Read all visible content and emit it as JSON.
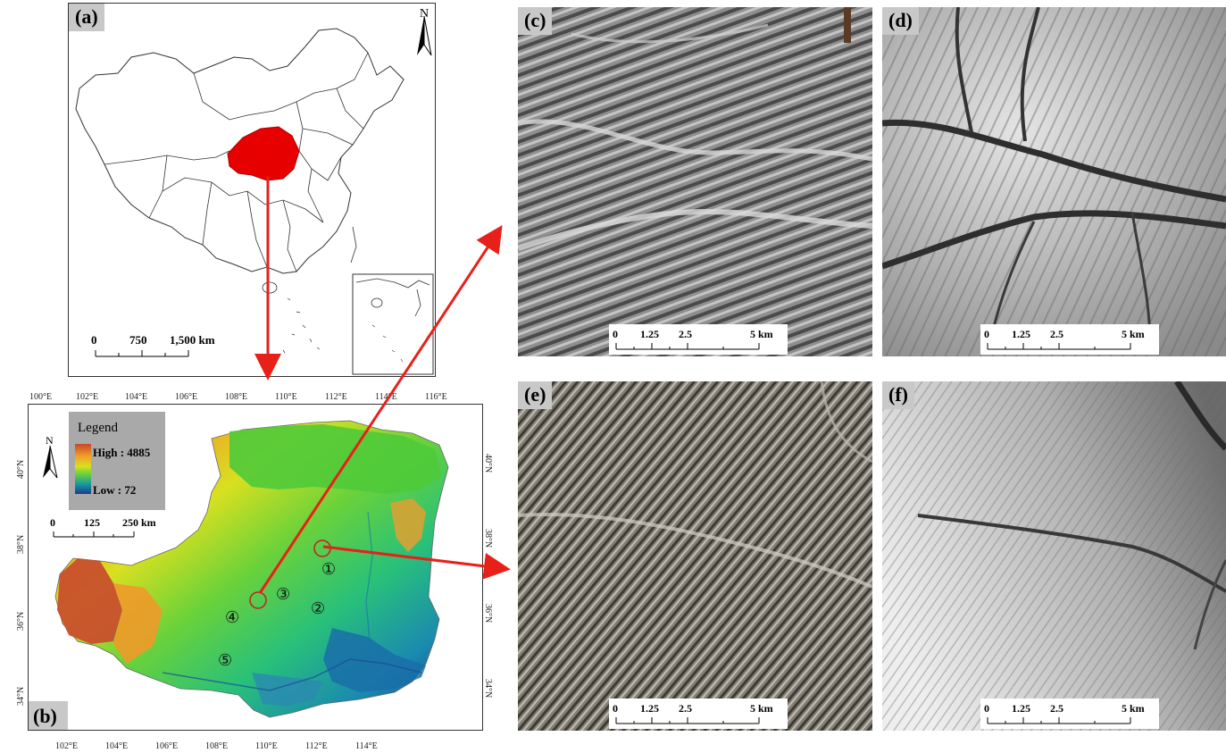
{
  "panels": {
    "a": {
      "label": "(a)",
      "north": "N",
      "scale": {
        "ticks": [
          "0",
          "750",
          "1,500 km"
        ]
      }
    },
    "b": {
      "label": "(b)",
      "north": "N",
      "legend": {
        "title": "Legend",
        "high": "High : 4885",
        "low": "Low : 72"
      },
      "scale": {
        "ticks": [
          "0",
          "125",
          "250 km"
        ]
      },
      "lon_top": [
        "100°E",
        "102°E",
        "104°E",
        "106°E",
        "108°E",
        "110°E",
        "112°E",
        "114°E",
        "116°E"
      ],
      "lon_bottom": [
        "102°E",
        "104°E",
        "106°E",
        "108°E",
        "110°E",
        "112°E",
        "114°E"
      ],
      "lat_left": [
        "40°N",
        "38°N",
        "36°N",
        "34°N"
      ],
      "lat_right": [
        "40°N",
        "38°N",
        "36°N",
        "34°N"
      ],
      "sites": [
        "①",
        "②",
        "③",
        "④",
        "⑤"
      ]
    },
    "c": {
      "label": "(c)",
      "scale": {
        "ticks": [
          "0",
          "1.25",
          "2.5",
          "5 km"
        ]
      }
    },
    "d": {
      "label": "(d)",
      "scale": {
        "ticks": [
          "0",
          "1.25",
          "2.5",
          "5 km"
        ]
      }
    },
    "e": {
      "label": "(e)",
      "scale": {
        "ticks": [
          "0",
          "1.25",
          "2.5",
          "5 km"
        ]
      }
    },
    "f": {
      "label": "(f)",
      "scale": {
        "ticks": [
          "0",
          "1.25",
          "2.5",
          "5 km"
        ]
      }
    }
  },
  "colors": {
    "highlight": "#e60000",
    "arrow": "#e8201a",
    "dem_high": "#c8462a",
    "dem_low": "#1a3c8c"
  },
  "icons": [
    "north-arrow-icon",
    "arrow-icon"
  ]
}
